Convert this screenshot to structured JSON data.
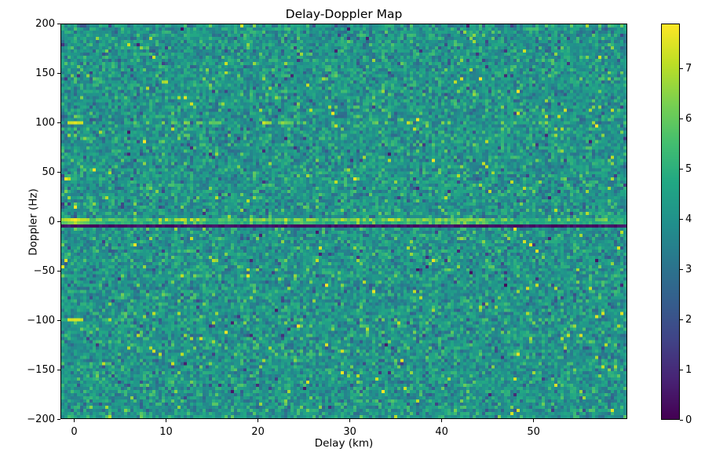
{
  "figure": {
    "background": "#ffffff",
    "text_color": "#000000"
  },
  "chart_data": {
    "type": "heatmap",
    "title": "Delay-Doppler Map",
    "xlabel": "Delay (km)",
    "ylabel": "Doppler (Hz)",
    "xlim": [
      -1.5,
      60.2
    ],
    "ylim": [
      -200,
      200
    ],
    "x_ticks": {
      "values": [
        0,
        10,
        20,
        30,
        40,
        50
      ],
      "labels": [
        "0",
        "10",
        "20",
        "30",
        "40",
        "50"
      ]
    },
    "y_ticks": {
      "values": [
        200,
        150,
        100,
        50,
        0,
        -50,
        -100,
        -150,
        -200
      ],
      "labels": [
        "200",
        "150",
        "100",
        "50",
        "0",
        "−50",
        "−100",
        "−150",
        "−200"
      ]
    },
    "grid_lines": "off",
    "colormap": "viridis",
    "colormap_stops": [
      [
        0.0,
        "#440154"
      ],
      [
        0.1,
        "#482475"
      ],
      [
        0.2,
        "#414487"
      ],
      [
        0.3,
        "#355f8d"
      ],
      [
        0.4,
        "#2a788e"
      ],
      [
        0.5,
        "#21918c"
      ],
      [
        0.6,
        "#22a884"
      ],
      [
        0.7,
        "#44bf70"
      ],
      [
        0.8,
        "#7ad151"
      ],
      [
        0.9,
        "#bddf26"
      ],
      [
        1.0,
        "#fde725"
      ]
    ],
    "colorbar": {
      "position": "right",
      "vmin": 0,
      "vmax": 7.9,
      "ticks": {
        "values": [
          0,
          1,
          2,
          3,
          4,
          5,
          6,
          7
        ],
        "labels": [
          "0",
          "1",
          "2",
          "3",
          "4",
          "5",
          "6",
          "7"
        ]
      }
    },
    "grid": {
      "cols": 180,
      "rows": 126
    },
    "noise": {
      "description": "speckled background noise covering full map",
      "mean": 4.1,
      "std": 0.72,
      "seed": 1234,
      "bright_speck_prob": 0.03,
      "dark_speck_prob": 0.025
    },
    "features": [
      {
        "name": "zero-doppler-bright-line",
        "doppler_hz": 0,
        "value_range": [
          4.8,
          6.6
        ],
        "hot_delay_ranges_km": [
          [
            9,
            14
          ],
          [
            19,
            26
          ],
          [
            28,
            45
          ]
        ],
        "hot_value_range": [
          5.8,
          7.4
        ],
        "fade_after_delay_km": 47
      },
      {
        "name": "zero-doppler-dark-line",
        "doppler_hz": -4,
        "value_range": [
          0.1,
          0.7
        ]
      },
      {
        "name": "specular-peak",
        "delay_km": 0,
        "doppler_hz": 0,
        "value": 7.9,
        "delay_halfwidth_km": 1.2
      },
      {
        "name": "doppler-ambiguity-line",
        "doppler_hz": 100,
        "peak_delay_km": 0,
        "peak_value": 7.6,
        "dash_delay_ranges_km": [
          [
            9,
            15
          ],
          [
            19,
            26
          ]
        ],
        "dash_value_range": [
          5.6,
          6.8
        ],
        "sparse_boost_prob": 0.08
      },
      {
        "name": "doppler-ambiguity-line",
        "doppler_hz": -100,
        "peak_delay_km": 0,
        "peak_value": 7.5,
        "dash_delay_ranges_km": [],
        "dash_value_range": [
          5.5,
          6.3
        ],
        "sparse_boost_prob": 0.05
      }
    ]
  }
}
